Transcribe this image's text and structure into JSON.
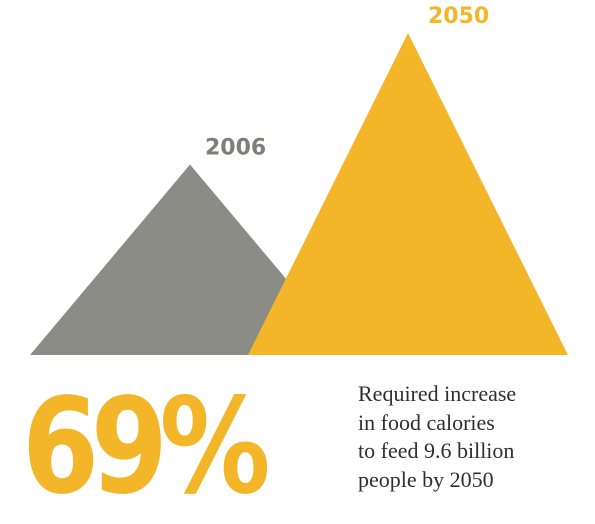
{
  "colors": {
    "gray": "#8c8c86",
    "yellow": "#f3b629",
    "gray_text": "#7f7f7a",
    "text": "#2f2f2f"
  },
  "chart_data": {
    "type": "triangle-comparison",
    "categories": [
      "2006",
      "2050"
    ],
    "values": [
      100,
      169
    ],
    "unit": "relative food calories",
    "highlight": {
      "value": "69%",
      "description": [
        "Required increase",
        "in food calories",
        "to feed 9.6 billion",
        "people by 2050"
      ]
    }
  }
}
